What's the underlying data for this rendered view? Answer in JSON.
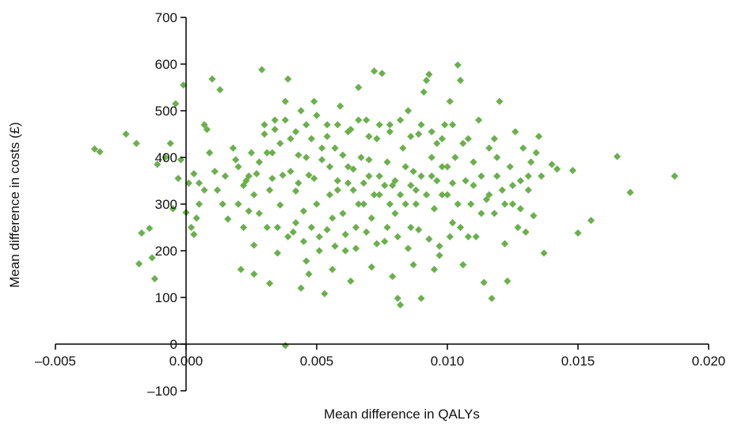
{
  "chart_data": {
    "type": "scatter",
    "title": "",
    "xlabel": "Mean difference in QALYs",
    "ylabel": "Mean difference in costs (£)",
    "xlim": [
      -0.005,
      0.02
    ],
    "ylim": [
      -100,
      700
    ],
    "x_ticks": [
      -0.005,
      0.0,
      0.005,
      0.01,
      0.015,
      0.02
    ],
    "x_tick_labels": [
      "–0.005",
      "0.000",
      "0.005",
      "0.010",
      "0.015",
      "0.020"
    ],
    "y_ticks": [
      -100,
      0,
      100,
      200,
      300,
      400,
      500,
      600,
      700
    ],
    "y_tick_labels": [
      "–100",
      "0",
      "100",
      "200",
      "300",
      "400",
      "500",
      "600",
      "700"
    ],
    "grid": false,
    "legend": "none",
    "marker": "diamond",
    "series": [
      {
        "color": "#6ab04c",
        "points": [
          [
            -0.0035,
            418
          ],
          [
            -0.0033,
            412
          ],
          [
            -0.0023,
            450
          ],
          [
            -0.0019,
            430
          ],
          [
            -0.0018,
            172
          ],
          [
            -0.0017,
            238
          ],
          [
            -0.0014,
            248
          ],
          [
            -0.0013,
            185
          ],
          [
            -0.0012,
            140
          ],
          [
            -0.0011,
            385
          ],
          [
            -0.0008,
            400
          ],
          [
            -0.0006,
            430
          ],
          [
            -0.0005,
            290
          ],
          [
            -0.0004,
            515
          ],
          [
            -0.0003,
            355
          ],
          [
            -0.0002,
            395
          ],
          [
            -0.0001,
            555
          ],
          [
            0.0,
            282
          ],
          [
            0.0002,
            250
          ],
          [
            0.0003,
            365
          ],
          [
            0.0005,
            300
          ],
          [
            0.0007,
            470
          ],
          [
            0.0008,
            460
          ],
          [
            0.001,
            568
          ],
          [
            0.0013,
            545
          ],
          [
            0.0011,
            370
          ],
          [
            0.0014,
            300
          ],
          [
            0.0016,
            268
          ],
          [
            0.0018,
            420
          ],
          [
            0.002,
            380
          ],
          [
            0.0021,
            160
          ],
          [
            0.0022,
            340
          ],
          [
            0.0024,
            285
          ],
          [
            0.0026,
            212
          ],
          [
            0.0028,
            390
          ],
          [
            0.0029,
            588
          ],
          [
            0.003,
            470
          ],
          [
            0.0031,
            250
          ],
          [
            0.0032,
            330
          ],
          [
            0.0033,
            410
          ],
          [
            0.0034,
            480
          ],
          [
            0.0035,
            195
          ],
          [
            0.0036,
            298
          ],
          [
            0.0037,
            362
          ],
          [
            0.0038,
            520
          ],
          [
            0.0039,
            568
          ],
          [
            0.004,
            440
          ],
          [
            0.0041,
            240
          ],
          [
            0.0042,
            328
          ],
          [
            0.0043,
            405
          ],
          [
            0.0044,
            500
          ],
          [
            0.0045,
            285
          ],
          [
            0.0046,
            178
          ],
          [
            0.0047,
            362
          ],
          [
            0.0048,
            440
          ],
          [
            0.0049,
            520
          ],
          [
            0.005,
            300
          ],
          [
            0.0051,
            230
          ],
          [
            0.0052,
            395
          ],
          [
            0.0053,
            108
          ],
          [
            0.0054,
            470
          ],
          [
            0.0055,
            320
          ],
          [
            0.0056,
            270
          ],
          [
            0.0057,
            420
          ],
          [
            0.0058,
            350
          ],
          [
            0.0059,
            510
          ],
          [
            0.006,
            280
          ],
          [
            0.0061,
            200
          ],
          [
            0.0062,
            380
          ],
          [
            0.0063,
            460
          ],
          [
            0.0064,
            330
          ],
          [
            0.0065,
            250
          ],
          [
            0.0066,
            550
          ],
          [
            0.0067,
            400
          ],
          [
            0.0068,
            300
          ],
          [
            0.0069,
            480
          ],
          [
            0.007,
            360
          ],
          [
            0.0071,
            270
          ],
          [
            0.0072,
            585
          ],
          [
            0.0073,
            440
          ],
          [
            0.0074,
            320
          ],
          [
            0.0075,
            580
          ],
          [
            0.0076,
            220
          ],
          [
            0.0077,
            390
          ],
          [
            0.0078,
            470
          ],
          [
            0.0079,
            340
          ],
          [
            0.008,
            280
          ],
          [
            0.0081,
            98
          ],
          [
            0.0082,
            84
          ],
          [
            0.0083,
            420
          ],
          [
            0.0084,
            300
          ],
          [
            0.0085,
            500
          ],
          [
            0.0086,
            250
          ],
          [
            0.0087,
            370
          ],
          [
            0.0088,
            330
          ],
          [
            0.0089,
            450
          ],
          [
            0.009,
            98
          ],
          [
            0.0091,
            540
          ],
          [
            0.0092,
            565
          ],
          [
            0.0093,
            578
          ],
          [
            0.0094,
            360
          ],
          [
            0.0095,
            290
          ],
          [
            0.0096,
            430
          ],
          [
            0.0097,
            210
          ],
          [
            0.0098,
            380
          ],
          [
            0.0099,
            470
          ],
          [
            0.01,
            320
          ],
          [
            0.0101,
            520
          ],
          [
            0.0102,
            260
          ],
          [
            0.0103,
            400
          ],
          [
            0.0104,
            598
          ],
          [
            0.0105,
            565
          ],
          [
            0.0106,
            170
          ],
          [
            0.0107,
            350
          ],
          [
            0.0108,
            440
          ],
          [
            0.0109,
            300
          ],
          [
            0.011,
            390
          ],
          [
            0.0111,
            230
          ],
          [
            0.0112,
            480
          ],
          [
            0.0113,
            360
          ],
          [
            0.0114,
            132
          ],
          [
            0.0115,
            310
          ],
          [
            0.0116,
            420
          ],
          [
            0.0117,
            98
          ],
          [
            0.0118,
            280
          ],
          [
            0.0119,
            400
          ],
          [
            0.012,
            520
          ],
          [
            0.0121,
            330
          ],
          [
            0.0122,
            215
          ],
          [
            0.0123,
            135
          ],
          [
            0.0124,
            380
          ],
          [
            0.0125,
            300
          ],
          [
            0.0126,
            455
          ],
          [
            0.0127,
            250
          ],
          [
            0.0128,
            350
          ],
          [
            0.0129,
            420
          ],
          [
            0.013,
            240
          ],
          [
            0.0131,
            330
          ],
          [
            0.0132,
            390
          ],
          [
            0.0133,
            275
          ],
          [
            0.0134,
            410
          ],
          [
            0.0135,
            445
          ],
          [
            0.0136,
            360
          ],
          [
            0.0137,
            195
          ],
          [
            0.014,
            385
          ],
          [
            0.0142,
            375
          ],
          [
            0.0148,
            372
          ],
          [
            0.015,
            238
          ],
          [
            0.0155,
            265
          ],
          [
            0.0165,
            402
          ],
          [
            0.017,
            325
          ],
          [
            0.0187,
            360
          ],
          [
            0.0038,
            -3
          ],
          [
            0.0005,
            345
          ],
          [
            0.0009,
            410
          ],
          [
            0.0012,
            330
          ],
          [
            0.0015,
            360
          ],
          [
            0.0019,
            395
          ],
          [
            0.0023,
            350
          ],
          [
            0.0025,
            410
          ],
          [
            0.0027,
            365
          ],
          [
            0.0033,
            355
          ],
          [
            0.0036,
            430
          ],
          [
            0.004,
            370
          ],
          [
            0.0043,
            345
          ],
          [
            0.0046,
            400
          ],
          [
            0.0049,
            355
          ],
          [
            0.0052,
            420
          ],
          [
            0.0055,
            380
          ],
          [
            0.0058,
            330
          ],
          [
            0.006,
            405
          ],
          [
            0.0062,
            345
          ],
          [
            0.0064,
            375
          ],
          [
            0.0066,
            300
          ],
          [
            0.0068,
            345
          ],
          [
            0.007,
            395
          ],
          [
            0.0072,
            320
          ],
          [
            0.0074,
            360
          ],
          [
            0.0076,
            340
          ],
          [
            0.0078,
            300
          ],
          [
            0.008,
            350
          ],
          [
            0.0082,
            320
          ],
          [
            0.0084,
            380
          ],
          [
            0.0086,
            340
          ],
          [
            0.0088,
            300
          ],
          [
            0.009,
            360
          ],
          [
            0.0092,
            320
          ],
          [
            0.0094,
            400
          ],
          [
            0.0096,
            350
          ],
          [
            0.0098,
            320
          ],
          [
            0.01,
            380
          ],
          [
            0.0102,
            345
          ],
          [
            0.0104,
            300
          ],
          [
            0.0035,
            250
          ],
          [
            0.0039,
            230
          ],
          [
            0.0042,
            260
          ],
          [
            0.0045,
            220
          ],
          [
            0.0048,
            250
          ],
          [
            0.0051,
            200
          ],
          [
            0.0054,
            245
          ],
          [
            0.0057,
            210
          ],
          [
            0.0061,
            235
          ],
          [
            0.0065,
            205
          ],
          [
            0.0069,
            240
          ],
          [
            0.0073,
            215
          ],
          [
            0.0077,
            250
          ],
          [
            0.0081,
            230
          ],
          [
            0.0085,
            205
          ],
          [
            0.0089,
            245
          ],
          [
            0.0093,
            225
          ],
          [
            0.0097,
            190
          ],
          [
            0.0101,
            230
          ],
          [
            0.0105,
            250
          ],
          [
            0.003,
            450
          ],
          [
            0.0034,
            460
          ],
          [
            0.0038,
            480
          ],
          [
            0.0042,
            455
          ],
          [
            0.0046,
            470
          ],
          [
            0.005,
            490
          ],
          [
            0.0054,
            445
          ],
          [
            0.0058,
            470
          ],
          [
            0.0062,
            455
          ],
          [
            0.0066,
            480
          ],
          [
            0.007,
            445
          ],
          [
            0.0074,
            470
          ],
          [
            0.0078,
            455
          ],
          [
            0.0082,
            480
          ],
          [
            0.0086,
            445
          ],
          [
            0.009,
            470
          ],
          [
            0.0094,
            455
          ],
          [
            0.0098,
            440
          ],
          [
            0.0102,
            470
          ],
          [
            0.0106,
            430
          ],
          [
            0.002,
            300
          ],
          [
            0.0022,
            250
          ],
          [
            0.0024,
            360
          ],
          [
            0.0026,
            320
          ],
          [
            0.0028,
            280
          ],
          [
            0.0031,
            410
          ],
          [
            0.0007,
            330
          ],
          [
            0.0004,
            270
          ],
          [
            0.0001,
            345
          ],
          [
            0.0003,
            235
          ],
          [
            0.011,
            340
          ],
          [
            0.0113,
            280
          ],
          [
            0.0116,
            320
          ],
          [
            0.0119,
            360
          ],
          [
            0.0122,
            300
          ],
          [
            0.0125,
            340
          ],
          [
            0.0128,
            290
          ],
          [
            0.0131,
            360
          ],
          [
            0.0118,
            440
          ],
          [
            0.0108,
            230
          ],
          [
            0.0047,
            150
          ],
          [
            0.0056,
            160
          ],
          [
            0.0063,
            135
          ],
          [
            0.0071,
            165
          ],
          [
            0.0079,
            145
          ],
          [
            0.0087,
            170
          ],
          [
            0.0095,
            160
          ],
          [
            0.0032,
            130
          ],
          [
            0.0026,
            150
          ],
          [
            0.0044,
            120
          ]
        ]
      }
    ]
  }
}
